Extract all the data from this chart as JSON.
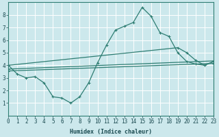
{
  "bg_color": "#cce8ec",
  "grid_color": "#ffffff",
  "line_color": "#2e7d72",
  "xlabel": "Humidex (Indice chaleur)",
  "ylim": [
    0,
    9
  ],
  "xlim": [
    0,
    23
  ],
  "yticks": [
    1,
    2,
    3,
    4,
    5,
    6,
    7,
    8
  ],
  "xticks": [
    0,
    1,
    2,
    3,
    4,
    5,
    6,
    7,
    8,
    9,
    10,
    11,
    12,
    13,
    14,
    15,
    16,
    17,
    18,
    19,
    20,
    21,
    22,
    23
  ],
  "line1_x": [
    0,
    1,
    2,
    3,
    4,
    5,
    6,
    7,
    8,
    9,
    10,
    11,
    12,
    13,
    14,
    15,
    16,
    17,
    18,
    19,
    20,
    21,
    22,
    23
  ],
  "line1_y": [
    4.0,
    3.3,
    3.0,
    3.1,
    2.6,
    1.5,
    1.4,
    1.0,
    1.5,
    2.6,
    4.2,
    5.6,
    6.8,
    7.1,
    7.4,
    8.6,
    7.9,
    6.6,
    6.3,
    5.0,
    4.3,
    4.1,
    4.0,
    4.3
  ],
  "line2_x": [
    0,
    19,
    20,
    21,
    22,
    23
  ],
  "line2_y": [
    4.0,
    5.4,
    5.0,
    4.4,
    4.0,
    4.3
  ],
  "line3_x": [
    0,
    23
  ],
  "line3_y": [
    3.7,
    4.35
  ],
  "line4_x": [
    0,
    23
  ],
  "line4_y": [
    3.55,
    4.15
  ]
}
